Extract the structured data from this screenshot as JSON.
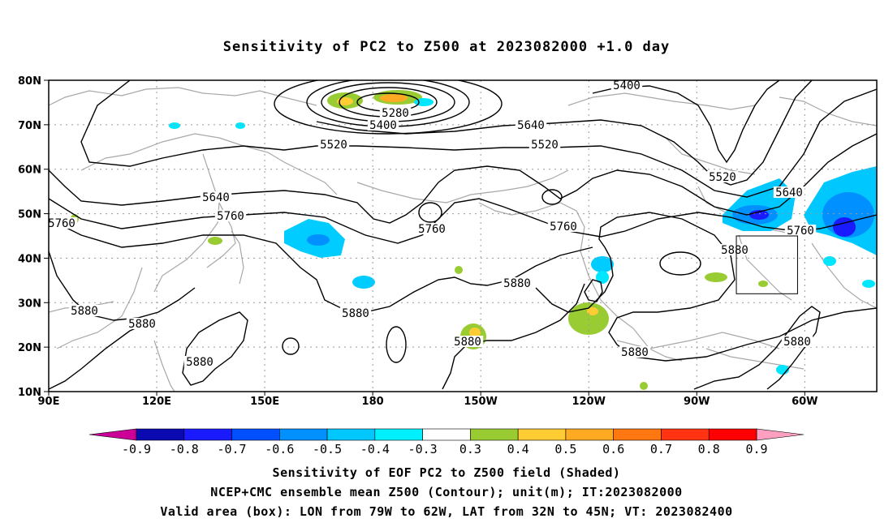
{
  "title": "Sensitivity of PC2 to Z500 at 2023082000 +1.0 day",
  "map": {
    "lat_labels": [
      "80N",
      "70N",
      "60N",
      "50N",
      "40N",
      "30N",
      "20N",
      "10N"
    ],
    "lon_labels": [
      "90E",
      "120E",
      "150E",
      "180",
      "150W",
      "120W",
      "90W",
      "60W"
    ],
    "lat_range": [
      10,
      80
    ],
    "lon_range_east_deg": [
      90,
      320
    ],
    "gridlines": "dotted"
  },
  "contours": {
    "color": "#000000",
    "labels": [
      "5400",
      "5280",
      "5400",
      "5520",
      "5640",
      "5520",
      "5640",
      "5760",
      "5760",
      "5760",
      "5880",
      "5880",
      "5880",
      "5880",
      "5880",
      "5880",
      "5880",
      "5880",
      "5880",
      "5640",
      "5520",
      "5760",
      "5760"
    ]
  },
  "valid_box": {
    "lon_west": -79,
    "lon_east": -62,
    "lat_south": 32,
    "lat_north": 45
  },
  "colorbar": {
    "tick_labels": [
      "-0.9",
      "-0.8",
      "-0.7",
      "-0.6",
      "-0.5",
      "-0.4",
      "-0.3",
      "0.3",
      "0.4",
      "0.5",
      "0.6",
      "0.7",
      "0.8",
      "0.9"
    ],
    "colors": [
      "#0a0ab0",
      "#1a1aff",
      "#0050ff",
      "#0090ff",
      "#00c8ff",
      "#00f0ff",
      "#ffffff",
      "#99cc33",
      "#ffcc33",
      "#ffaa22",
      "#ff7711",
      "#ff3311",
      "#ff0000"
    ],
    "low_arrow_color": "#cc0099",
    "high_arrow_color": "#ffa0c0"
  },
  "footer": {
    "line1": "Sensitivity of EOF PC2 to Z500 field (Shaded)",
    "line2": "NCEP+CMC ensemble mean Z500 (Contour); unit(m); IT:2023082000",
    "line3": "Valid area (box): LON from 79W to 62W, LAT from 32N to 45N; VT: 2023082400"
  }
}
